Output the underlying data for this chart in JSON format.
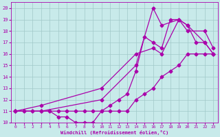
{
  "title": "",
  "xlabel": "Windchill (Refroidissement éolien,°C)",
  "ylabel": "",
  "bg_color": "#c8eaea",
  "grid_color": "#a0c8c8",
  "line_color": "#aa00aa",
  "xlim": [
    -0.5,
    23.5
  ],
  "ylim": [
    10,
    20.5
  ],
  "xticks": [
    0,
    1,
    2,
    3,
    4,
    5,
    6,
    7,
    8,
    9,
    10,
    11,
    12,
    13,
    14,
    15,
    16,
    17,
    18,
    19,
    20,
    21,
    22,
    23
  ],
  "yticks": [
    10,
    11,
    12,
    13,
    14,
    15,
    16,
    17,
    18,
    19,
    20
  ],
  "lines": [
    {
      "x": [
        0,
        1,
        2,
        3,
        4,
        5,
        6,
        7,
        8,
        9,
        10,
        11,
        12,
        13,
        14,
        15,
        16,
        17,
        18,
        19,
        20,
        21,
        22,
        23
      ],
      "y": [
        11,
        11,
        11,
        11,
        11,
        11,
        11,
        11,
        11,
        11,
        11,
        11,
        11,
        11,
        12,
        12.5,
        13,
        14,
        14.5,
        15,
        16,
        16,
        16,
        16
      ]
    },
    {
      "x": [
        0,
        1,
        2,
        3,
        4,
        5,
        6,
        7,
        8,
        9,
        10,
        11,
        12,
        13,
        14,
        15,
        16,
        17,
        18,
        19,
        20,
        21,
        22,
        23
      ],
      "y": [
        11,
        11,
        11,
        11,
        11,
        10.5,
        10.5,
        10,
        10,
        10,
        11,
        11.5,
        12,
        12.5,
        14.5,
        17.5,
        17,
        16.5,
        19,
        19,
        18.5,
        17,
        17,
        16
      ]
    },
    {
      "x": [
        0,
        3,
        10,
        14,
        16,
        17,
        19,
        20,
        22,
        23
      ],
      "y": [
        11,
        11,
        12,
        15,
        20,
        18.5,
        19,
        18,
        18,
        16.5
      ]
    },
    {
      "x": [
        0,
        3,
        10,
        14,
        16,
        17,
        19,
        20,
        22,
        23
      ],
      "y": [
        11,
        11.5,
        13,
        16,
        16.5,
        16,
        19,
        18.5,
        17,
        16
      ]
    }
  ],
  "marker": "D",
  "markersize": 2.5,
  "linewidth": 0.9
}
